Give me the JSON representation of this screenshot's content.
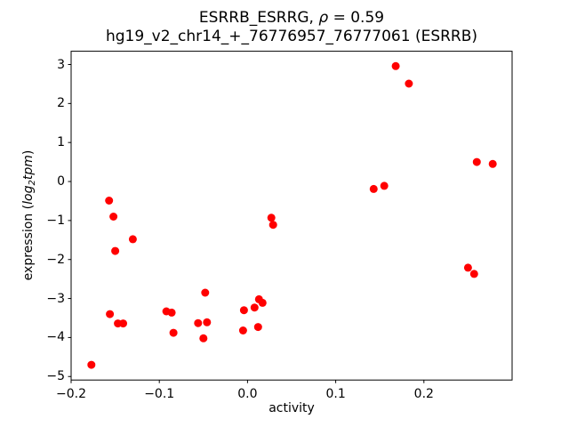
{
  "figure": {
    "title_line1_prefix": "ESRRB_ESRRG, ",
    "title_rho": "ρ",
    "title_line1_suffix": " = 0.59",
    "title_line2": "hg19_v2_chr14_+_76776957_76777061 (ESRRB)"
  },
  "axes": {
    "xlabel": "activity",
    "ylabel_prefix": "expression (",
    "ylabel_log": "log",
    "ylabel_sub": "2",
    "ylabel_tpm": "tpm",
    "ylabel_suffix": ")"
  },
  "chart_data": {
    "type": "scatter",
    "title": "ESRRB_ESRRG, ρ = 0.59\nhg19_v2_chr14_+_76776957_76777061 (ESRRB)",
    "xlabel": "activity",
    "ylabel": "expression (log2 tpm)",
    "legend": null,
    "grid": false,
    "marker_color": "#ff0000",
    "marker_radius_px": 4.5,
    "axis_color": "#000000",
    "xlim": [
      -0.2,
      0.3
    ],
    "ylim": [
      -5.09,
      3.34
    ],
    "x_ticks": [
      {
        "value": -0.2,
        "label": "−0.2"
      },
      {
        "value": -0.1,
        "label": "−0.1"
      },
      {
        "value": 0.0,
        "label": "0.0"
      },
      {
        "value": 0.1,
        "label": "0.1"
      },
      {
        "value": 0.2,
        "label": "0.2"
      }
    ],
    "y_ticks": [
      {
        "value": 3,
        "label": "3"
      },
      {
        "value": 2,
        "label": "2"
      },
      {
        "value": 1,
        "label": "1"
      },
      {
        "value": 0,
        "label": "0"
      },
      {
        "value": -1,
        "label": "−1"
      },
      {
        "value": -2,
        "label": "−2"
      },
      {
        "value": -3,
        "label": "−3"
      },
      {
        "value": -4,
        "label": "−4"
      },
      {
        "value": -5,
        "label": "−5"
      }
    ],
    "points": [
      [
        -0.177,
        -4.7
      ],
      [
        -0.157,
        -0.49
      ],
      [
        -0.152,
        -0.9
      ],
      [
        -0.15,
        -1.78
      ],
      [
        -0.13,
        -1.48
      ],
      [
        -0.156,
        -3.4
      ],
      [
        -0.147,
        -3.64
      ],
      [
        -0.141,
        -3.64
      ],
      [
        -0.092,
        -3.33
      ],
      [
        -0.086,
        -3.36
      ],
      [
        -0.084,
        -3.88
      ],
      [
        -0.056,
        -3.63
      ],
      [
        -0.046,
        -3.61
      ],
      [
        -0.05,
        -4.02
      ],
      [
        -0.048,
        -2.85
      ],
      [
        -0.004,
        -3.3
      ],
      [
        0.008,
        -3.23
      ],
      [
        0.013,
        -3.02
      ],
      [
        0.017,
        -3.11
      ],
      [
        -0.005,
        -3.82
      ],
      [
        0.012,
        -3.73
      ],
      [
        0.027,
        -0.93
      ],
      [
        0.029,
        -1.11
      ],
      [
        0.143,
        -0.19
      ],
      [
        0.155,
        -0.11
      ],
      [
        0.168,
        2.96
      ],
      [
        0.183,
        2.51
      ],
      [
        0.25,
        -2.21
      ],
      [
        0.257,
        -2.37
      ],
      [
        0.26,
        0.5
      ],
      [
        0.278,
        0.45
      ]
    ]
  }
}
